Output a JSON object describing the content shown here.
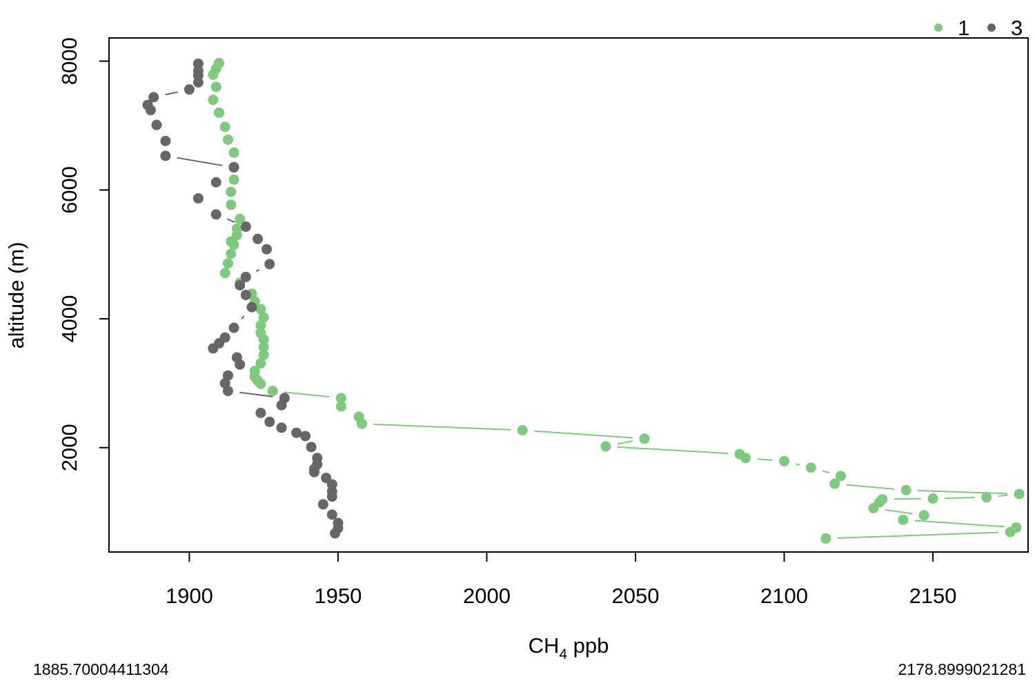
{
  "chart_data": {
    "type": "scatter",
    "title": "",
    "xlabel": "CH4 ppb",
    "xlabel_main": "CH",
    "xlabel_sub": "4",
    "xlabel_rest": " ppb",
    "ylabel": "altitude (m)",
    "xlim": [
      1873,
      2182
    ],
    "ylim": [
      380,
      8360
    ],
    "xticks": [
      1900,
      1950,
      2000,
      2050,
      2100,
      2150
    ],
    "yticks": [
      2000,
      4000,
      6000,
      8000
    ],
    "grid": false,
    "legend_position": "top-right",
    "series": [
      {
        "name": "1",
        "color": "#7fc97f",
        "points": [
          [
            1910,
            7970
          ],
          [
            1909,
            7880
          ],
          [
            1908,
            7790
          ],
          [
            1909,
            7600
          ],
          [
            1908,
            7400
          ],
          [
            1910,
            7200
          ],
          [
            1912,
            6980
          ],
          [
            1913,
            6780
          ],
          [
            1915,
            6580
          ],
          [
            1915,
            6360
          ],
          [
            1915,
            6160
          ],
          [
            1914,
            5970
          ],
          [
            1914,
            5770
          ],
          [
            1917,
            5550
          ],
          [
            1916,
            5400
          ],
          [
            1916,
            5300
          ],
          [
            1914,
            5200
          ],
          [
            1915,
            5150
          ],
          [
            1914,
            5010
          ],
          [
            1913,
            4860
          ],
          [
            1912,
            4710
          ],
          [
            1917,
            4560
          ],
          [
            1921,
            4390
          ],
          [
            1922,
            4270
          ],
          [
            1924,
            4150
          ],
          [
            1925,
            4020
          ],
          [
            1924,
            3900
          ],
          [
            1924,
            3780
          ],
          [
            1925,
            3680
          ],
          [
            1925,
            3560
          ],
          [
            1925,
            3440
          ],
          [
            1924,
            3310
          ],
          [
            1922,
            3190
          ],
          [
            1922,
            3100
          ],
          [
            1923,
            3040
          ],
          [
            1924,
            2990
          ],
          [
            1928,
            2880
          ],
          [
            1951,
            2770
          ],
          [
            1951,
            2640
          ],
          [
            1957,
            2480
          ],
          [
            1958,
            2370
          ],
          [
            2012,
            2270
          ],
          [
            2053,
            2140
          ],
          [
            2040,
            2020
          ],
          [
            2085,
            1900
          ],
          [
            2087,
            1840
          ],
          [
            2100,
            1790
          ],
          [
            2109,
            1690
          ],
          [
            2119,
            1560
          ],
          [
            2117,
            1440
          ],
          [
            2141,
            1340
          ],
          [
            2179,
            1280
          ],
          [
            2168,
            1230
          ],
          [
            2150,
            1210
          ],
          [
            2133,
            1200
          ],
          [
            2132,
            1150
          ],
          [
            2130,
            1060
          ],
          [
            2147,
            950
          ],
          [
            2140,
            880
          ],
          [
            2178,
            760
          ],
          [
            2176,
            690
          ],
          [
            2114,
            590
          ]
        ]
      },
      {
        "name": "3",
        "color": "#666666",
        "points": [
          [
            1903,
            7960
          ],
          [
            1903,
            7850
          ],
          [
            1903,
            7780
          ],
          [
            1903,
            7670
          ],
          [
            1900,
            7560
          ],
          [
            1888,
            7440
          ],
          [
            1886,
            7320
          ],
          [
            1887,
            7240
          ],
          [
            1889,
            7010
          ],
          [
            1892,
            6760
          ],
          [
            1892,
            6530
          ],
          [
            1915,
            6350
          ],
          [
            1909,
            6120
          ],
          [
            1903,
            5870
          ],
          [
            1909,
            5620
          ],
          [
            1919,
            5430
          ],
          [
            1923,
            5240
          ],
          [
            1926,
            5080
          ],
          [
            1927,
            4850
          ],
          [
            1919,
            4650
          ],
          [
            1917,
            4520
          ],
          [
            1919,
            4370
          ],
          [
            1921,
            4180
          ],
          [
            1915,
            3860
          ],
          [
            1912,
            3710
          ],
          [
            1910,
            3620
          ],
          [
            1908,
            3540
          ],
          [
            1916,
            3400
          ],
          [
            1917,
            3290
          ],
          [
            1913,
            3120
          ],
          [
            1912,
            3000
          ],
          [
            1913,
            2880
          ],
          [
            1932,
            2770
          ],
          [
            1931,
            2660
          ],
          [
            1924,
            2540
          ],
          [
            1927,
            2400
          ],
          [
            1931,
            2310
          ],
          [
            1936,
            2230
          ],
          [
            1939,
            2180
          ],
          [
            1941,
            2010
          ],
          [
            1943,
            1840
          ],
          [
            1943,
            1740
          ],
          [
            1942,
            1670
          ],
          [
            1942,
            1620
          ],
          [
            1946,
            1530
          ],
          [
            1948,
            1430
          ],
          [
            1948,
            1320
          ],
          [
            1948,
            1240
          ],
          [
            1945,
            1120
          ],
          [
            1948,
            960
          ],
          [
            1950,
            830
          ],
          [
            1950,
            750
          ],
          [
            1949,
            670
          ]
        ]
      }
    ]
  },
  "footer": {
    "xmin_label": "1885.70004411304",
    "xmax_label": "2178.8999021281"
  }
}
